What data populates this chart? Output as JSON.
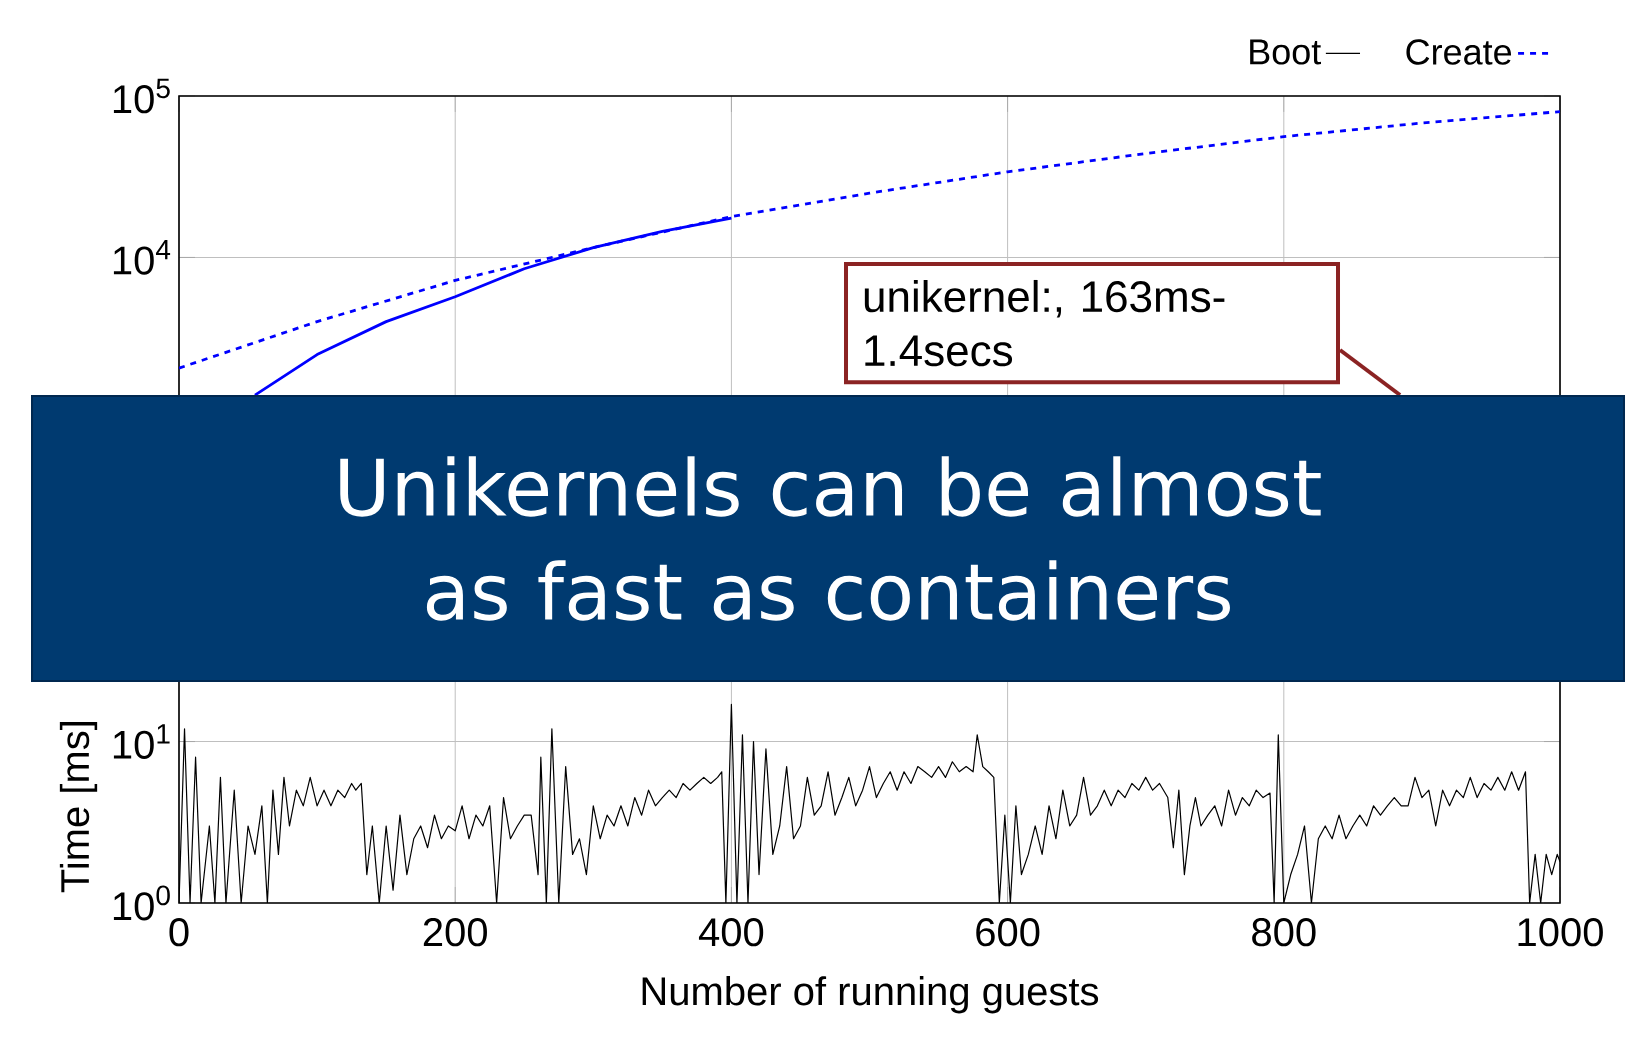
{
  "chart_data": {
    "type": "line",
    "title": "Unikernels can be almost as fast as containers",
    "xlabel": "Number of running guests",
    "ylabel": "Time [ms]",
    "annotations": [
      "unikernel:, 163ms-1.4secs"
    ],
    "xlim": [
      0,
      1000
    ],
    "xticks": [
      0,
      200,
      400,
      600,
      800,
      1000
    ],
    "ylim": [
      1,
      100000
    ],
    "yticks": [
      {
        "value": 1,
        "label": "10$^{0}$"
      },
      {
        "value": 10,
        "label": "10$^{1}$"
      },
      {
        "value": 10000,
        "label": "10$^{4}$"
      },
      {
        "value": 100000,
        "label": "10$^{5}$"
      }
    ],
    "log": "y",
    "grid": true,
    "legend": "top right",
    "series": [
      {
        "name": "Boot",
        "color": "#000000",
        "line_style": "solid",
        "x": [
          0,
          4,
          8,
          12,
          16,
          22,
          26,
          30,
          34,
          40,
          45,
          50,
          55,
          60,
          64,
          68,
          72,
          76,
          80,
          85,
          90,
          95,
          100,
          105,
          110,
          115,
          120,
          125,
          128,
          132,
          136,
          140,
          145,
          150,
          155,
          160,
          165,
          170,
          175,
          180,
          185,
          190,
          195,
          200,
          205,
          210,
          215,
          220,
          225,
          230,
          235,
          240,
          245,
          250,
          255,
          260,
          262,
          266,
          270,
          275,
          280,
          285,
          290,
          295,
          300,
          305,
          310,
          315,
          320,
          325,
          330,
          335,
          340,
          345,
          350,
          355,
          360,
          365,
          370,
          375,
          380,
          385,
          390,
          393,
          396,
          400,
          404,
          408,
          412,
          416,
          420,
          425,
          430,
          435,
          440,
          445,
          450,
          455,
          460,
          465,
          470,
          475,
          480,
          485,
          490,
          495,
          500,
          505,
          510,
          515,
          520,
          525,
          530,
          535,
          540,
          545,
          550,
          555,
          560,
          565,
          570,
          575,
          578,
          582,
          586,
          590,
          594,
          598,
          602,
          606,
          610,
          615,
          620,
          625,
          630,
          635,
          640,
          645,
          650,
          655,
          660,
          665,
          670,
          675,
          680,
          685,
          690,
          695,
          700,
          705,
          710,
          716,
          720,
          724,
          728,
          732,
          736,
          740,
          745,
          750,
          755,
          760,
          765,
          770,
          775,
          780,
          785,
          790,
          793,
          796,
          800,
          805,
          810,
          815,
          820,
          825,
          830,
          835,
          840,
          845,
          850,
          855,
          860,
          865,
          870,
          875,
          880,
          885,
          890,
          895,
          900,
          905,
          910,
          915,
          920,
          925,
          930,
          935,
          940,
          945,
          950,
          955,
          960,
          965,
          970,
          975,
          978,
          982,
          986,
          990,
          994,
          998,
          1000
        ],
        "values": [
          1,
          12,
          1,
          8,
          1,
          3,
          1,
          6,
          1,
          5,
          1,
          3,
          2,
          4,
          1,
          5,
          2,
          6,
          3,
          5,
          4,
          6,
          4,
          5,
          4,
          5,
          4.5,
          5.5,
          5,
          5.5,
          1.5,
          3,
          1,
          3,
          1.2,
          3.5,
          1.5,
          2.5,
          3,
          2.2,
          3.5,
          2.5,
          3,
          2.8,
          4,
          2.5,
          3.5,
          3,
          4,
          1,
          4.5,
          2.5,
          3,
          3.5,
          3.5,
          1.5,
          8,
          1,
          12,
          1,
          7,
          2,
          2.5,
          1.5,
          4,
          2.5,
          3.5,
          3,
          4,
          3,
          4.5,
          3.5,
          5,
          4,
          4.5,
          5,
          4.5,
          5.5,
          5,
          5.5,
          6,
          5.5,
          6,
          6.5,
          1,
          17,
          1,
          11,
          1,
          10,
          1.5,
          9,
          2,
          3,
          7,
          2.5,
          3,
          6,
          3.5,
          4,
          6.5,
          3.5,
          4.5,
          6,
          4,
          5,
          7,
          4.5,
          5.5,
          6.5,
          5,
          6.5,
          5.5,
          7,
          6.5,
          6,
          7,
          6,
          7.5,
          6.5,
          7,
          6.5,
          11,
          7,
          6.5,
          6,
          1,
          3.5,
          1,
          4,
          1.5,
          2,
          3,
          2,
          4,
          2.5,
          5,
          3,
          3.5,
          6,
          3.5,
          4,
          5,
          4,
          5,
          4.5,
          5.5,
          5,
          6,
          5,
          5.5,
          4.5,
          2.2,
          5,
          1.5,
          3,
          4.5,
          3,
          3.5,
          4,
          3,
          5,
          3.5,
          4.5,
          4,
          5,
          4.5,
          4.8,
          1,
          11,
          1,
          1.5,
          2,
          3,
          1,
          2.5,
          3,
          2.5,
          3.5,
          2.5,
          3,
          3.5,
          3,
          4,
          3.5,
          4,
          4.5,
          4,
          4,
          6,
          4.5,
          5,
          3,
          5,
          4,
          5,
          4.5,
          6,
          4.5,
          5.5,
          5,
          6,
          5,
          6.5,
          5,
          6.5,
          1,
          2,
          1,
          2,
          1.5,
          2,
          1.8
        ]
      },
      {
        "name": "Create",
        "color": "#0000ff",
        "line_style": "dashed",
        "x": [
          0,
          100,
          200,
          300,
          400,
          500,
          600,
          700,
          800,
          900,
          1000
        ],
        "values": [
          2060,
          4000,
          7200,
          11500,
          17900,
          25000,
          33900,
          44000,
          56000,
          68000,
          80000
        ]
      },
      {
        "color": "#0000ff",
        "line_style": "solid",
        "x": [
          55,
          100,
          150,
          200,
          250,
          300,
          350,
          400
        ],
        "values": [
          1400,
          2500,
          4000,
          5700,
          8500,
          11500,
          14500,
          17500
        ]
      }
    ]
  }
}
